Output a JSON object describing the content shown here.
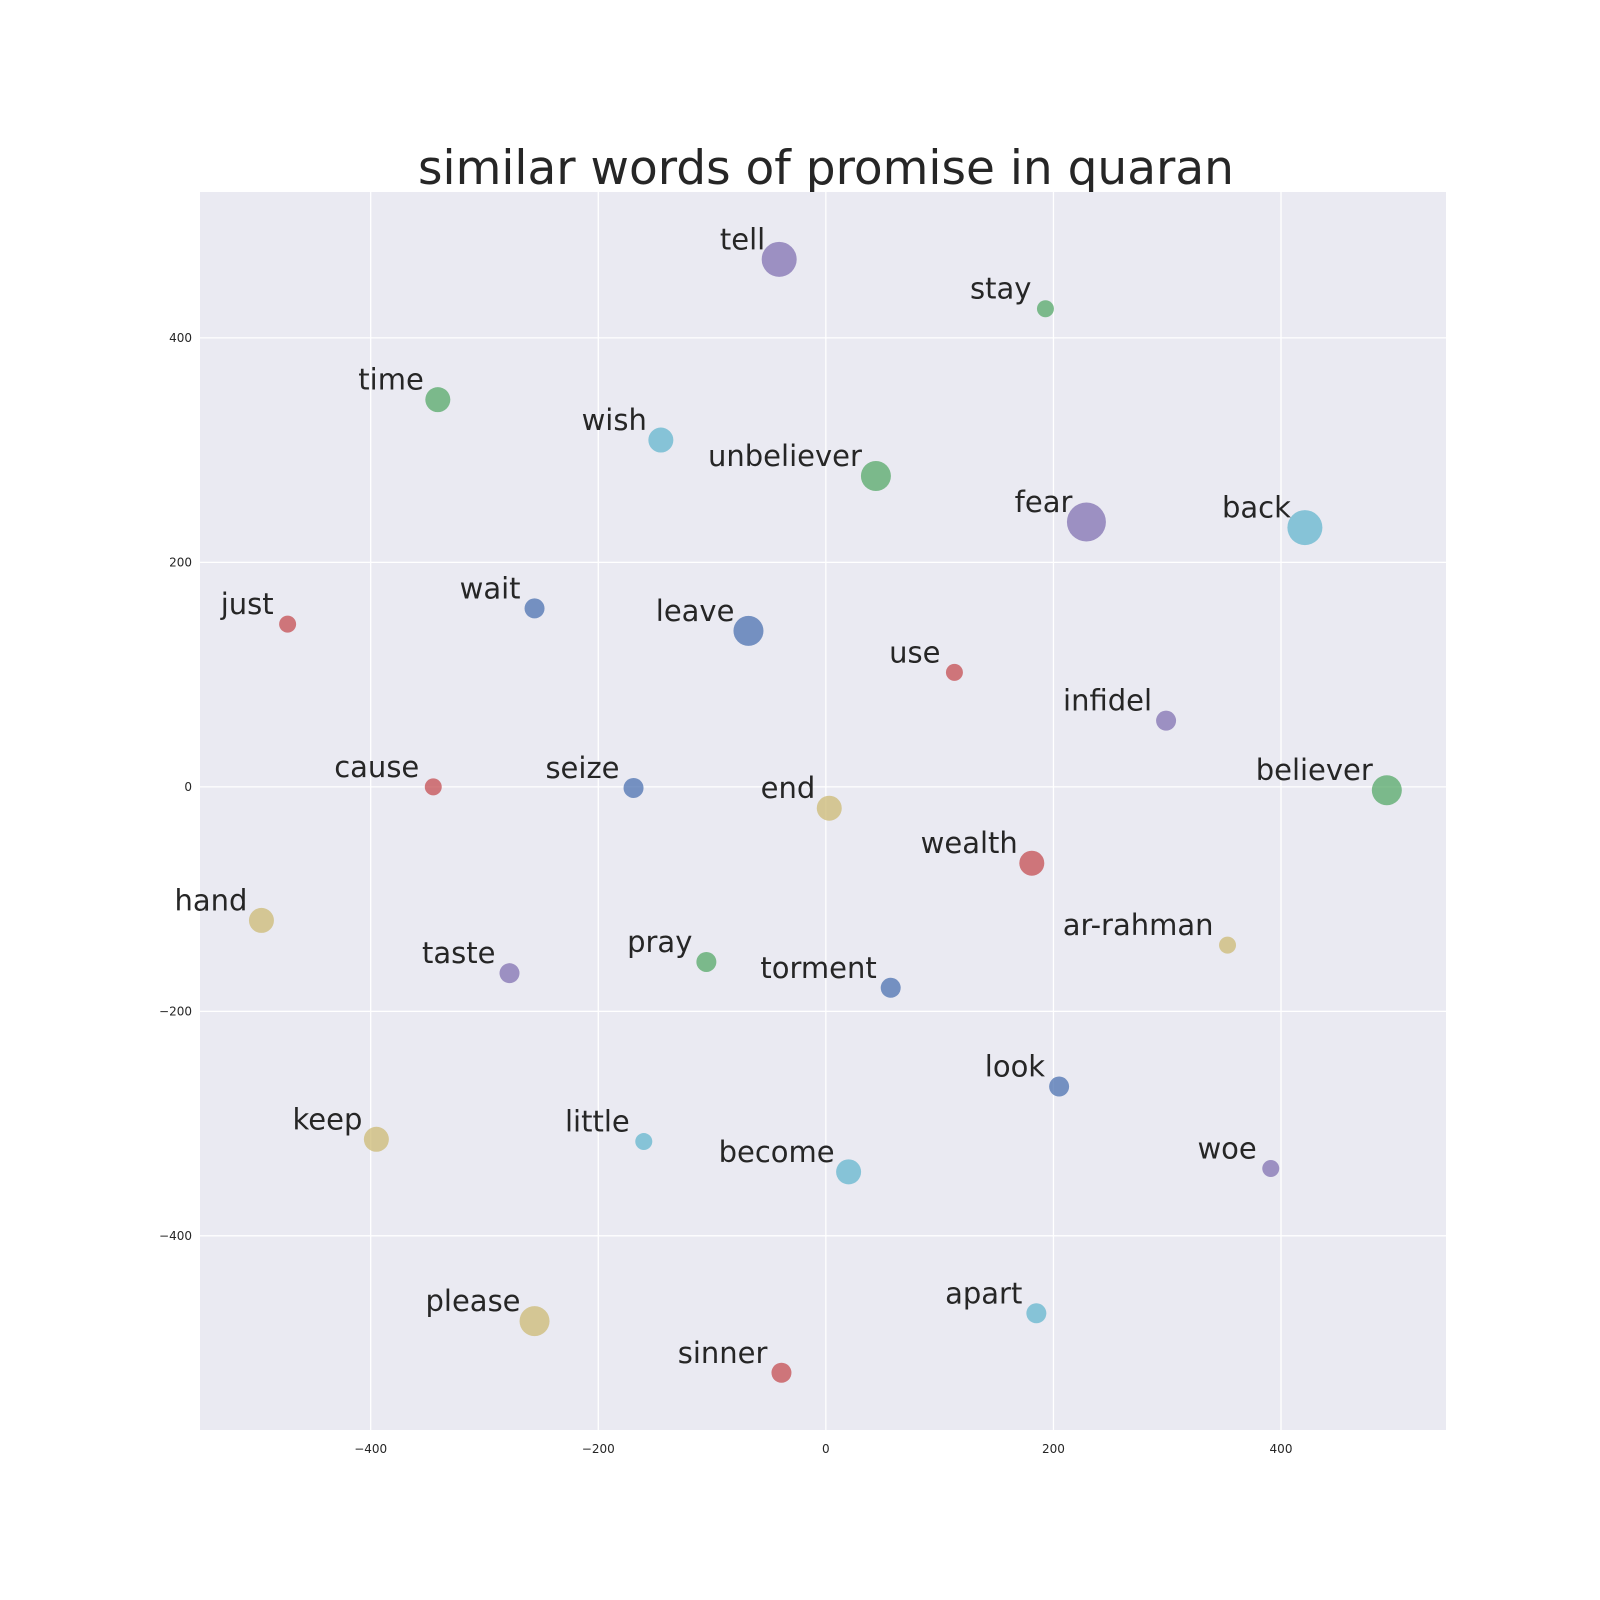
{
  "chart_data": {
    "type": "scatter",
    "title": "similar words of promise in quaran",
    "xlabel": "",
    "ylabel": "",
    "xlim": [
      -550,
      545
    ],
    "ylim": [
      -573,
      530
    ],
    "xticks": [
      -400,
      -200,
      0,
      200,
      400
    ],
    "yticks": [
      400,
      200,
      0,
      -200,
      -400
    ],
    "xtick_labels": [
      "−400",
      "−200",
      "0",
      "200",
      "400"
    ],
    "ytick_labels": [
      "400",
      "200",
      "0",
      "−200",
      "−400"
    ],
    "grid": true,
    "colors": {
      "background": "#eaeaf2",
      "blue": "#4c72b0",
      "green": "#55a868",
      "red": "#c44e52",
      "purple": "#8172b2",
      "yellow": "#ccb974",
      "cyan": "#64b5cd"
    },
    "points": [
      {
        "label": "tell",
        "x": -41,
        "y": 470,
        "size": 5,
        "color": "purple"
      },
      {
        "label": "stay",
        "x": 193,
        "y": 426,
        "size": 1,
        "color": "green"
      },
      {
        "label": "time",
        "x": -341,
        "y": 345,
        "size": 3,
        "color": "green"
      },
      {
        "label": "wish",
        "x": -145,
        "y": 309,
        "size": 3,
        "color": "cyan"
      },
      {
        "label": "unbeliever",
        "x": 44,
        "y": 277,
        "size": 4,
        "color": "green"
      },
      {
        "label": "fear",
        "x": 229,
        "y": 236,
        "size": 6,
        "color": "purple"
      },
      {
        "label": "back",
        "x": 421,
        "y": 231,
        "size": 5,
        "color": "cyan"
      },
      {
        "label": "just",
        "x": -473,
        "y": 145,
        "size": 1,
        "color": "red"
      },
      {
        "label": "wait",
        "x": -256,
        "y": 159,
        "size": 2,
        "color": "blue"
      },
      {
        "label": "leave",
        "x": -68,
        "y": 139,
        "size": 4,
        "color": "blue"
      },
      {
        "label": "use",
        "x": 113,
        "y": 102,
        "size": 1,
        "color": "red"
      },
      {
        "label": "infidel",
        "x": 299,
        "y": 59,
        "size": 2,
        "color": "purple"
      },
      {
        "label": "cause",
        "x": -345,
        "y": 0,
        "size": 1,
        "color": "red"
      },
      {
        "label": "seize",
        "x": -169,
        "y": -1,
        "size": 2,
        "color": "blue"
      },
      {
        "label": "end",
        "x": 3,
        "y": -19,
        "size": 3,
        "color": "yellow"
      },
      {
        "label": "believer",
        "x": 493,
        "y": -3,
        "size": 4,
        "color": "green"
      },
      {
        "label": "wealth",
        "x": 181,
        "y": -68,
        "size": 3,
        "color": "red"
      },
      {
        "label": "hand",
        "x": -496,
        "y": -119,
        "size": 3,
        "color": "yellow"
      },
      {
        "label": "ar-rahman",
        "x": 353,
        "y": -141,
        "size": 1,
        "color": "yellow"
      },
      {
        "label": "taste",
        "x": -278,
        "y": -166,
        "size": 2,
        "color": "purple"
      },
      {
        "label": "pray",
        "x": -105,
        "y": -156,
        "size": 2,
        "color": "green"
      },
      {
        "label": "torment",
        "x": 57,
        "y": -179,
        "size": 2,
        "color": "blue"
      },
      {
        "label": "look",
        "x": 205,
        "y": -267,
        "size": 2,
        "color": "blue"
      },
      {
        "label": "keep",
        "x": -395,
        "y": -314,
        "size": 3,
        "color": "yellow"
      },
      {
        "label": "little",
        "x": -160,
        "y": -316,
        "size": 1,
        "color": "cyan"
      },
      {
        "label": "become",
        "x": 20,
        "y": -343,
        "size": 3,
        "color": "cyan"
      },
      {
        "label": "woe",
        "x": 391,
        "y": -340,
        "size": 1,
        "color": "purple"
      },
      {
        "label": "please",
        "x": -256,
        "y": -476,
        "size": 4,
        "color": "yellow"
      },
      {
        "label": "apart",
        "x": 185,
        "y": -469,
        "size": 2,
        "color": "cyan"
      },
      {
        "label": "sinner",
        "x": -39,
        "y": -522,
        "size": 2,
        "color": "red"
      }
    ]
  }
}
